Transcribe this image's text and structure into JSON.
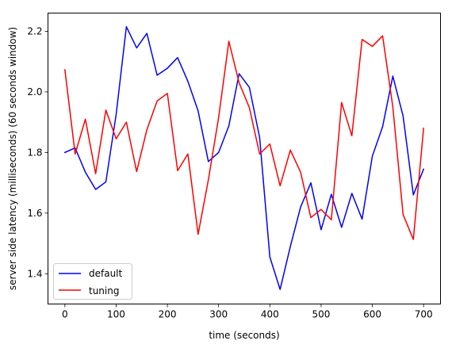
{
  "chart_data": {
    "type": "line",
    "title": "",
    "xlabel": "time (seconds)",
    "ylabel": "server side latency (milliseconds) (60 seconds window)",
    "xlim": [
      -33,
      733
    ],
    "ylim": [
      1.3,
      2.26
    ],
    "xticks": [
      0,
      100,
      200,
      300,
      400,
      500,
      600,
      700
    ],
    "yticks": [
      1.4,
      1.6,
      1.8,
      2.0,
      2.2
    ],
    "ytick_labels": [
      "1.4",
      "1.6",
      "1.8",
      "2.0",
      "2.2"
    ],
    "grid": false,
    "legend_position": "lower-left",
    "x": [
      0,
      20,
      40,
      60,
      80,
      100,
      120,
      140,
      160,
      180,
      200,
      220,
      240,
      260,
      280,
      300,
      320,
      340,
      360,
      380,
      400,
      420,
      440,
      460,
      480,
      500,
      520,
      540,
      560,
      580,
      600,
      620,
      640,
      660,
      680,
      700
    ],
    "series": [
      {
        "name": "default",
        "color": "#0000ff",
        "values": [
          1.8,
          1.815,
          1.735,
          1.678,
          1.703,
          1.925,
          2.215,
          2.145,
          2.193,
          2.055,
          2.078,
          2.113,
          2.035,
          1.937,
          1.77,
          1.8,
          1.888,
          2.06,
          2.015,
          1.85,
          1.455,
          1.348,
          1.49,
          1.62,
          1.7,
          1.545,
          1.662,
          1.553,
          1.665,
          1.58,
          1.788,
          1.885,
          2.052,
          1.92,
          1.66,
          1.745
        ]
      },
      {
        "name": "tuning",
        "color": "#ff0000",
        "values": [
          2.073,
          1.795,
          1.91,
          1.73,
          1.94,
          1.845,
          1.9,
          1.737,
          1.875,
          1.97,
          1.995,
          1.74,
          1.795,
          1.53,
          1.71,
          1.915,
          2.167,
          2.03,
          1.948,
          1.795,
          1.828,
          1.69,
          1.808,
          1.735,
          1.585,
          1.612,
          1.578,
          1.965,
          1.855,
          2.173,
          2.15,
          2.185,
          1.95,
          1.595,
          1.513,
          1.88
        ]
      }
    ]
  }
}
